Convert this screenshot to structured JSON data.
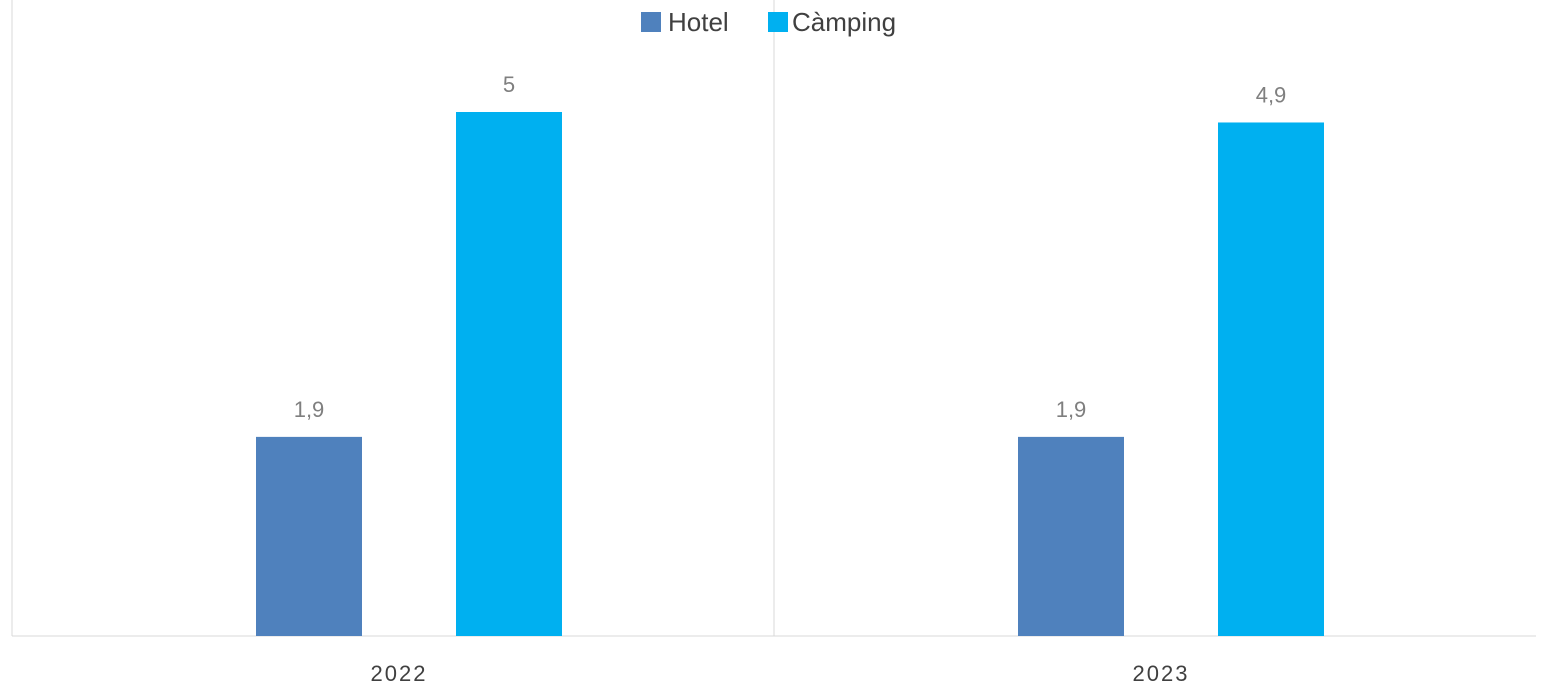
{
  "chart_data": {
    "type": "bar",
    "categories": [
      "2022",
      "2023"
    ],
    "series": [
      {
        "name": "Hotel",
        "color": "#4f81bd",
        "values": [
          1.9,
          1.9
        ],
        "labels": [
          "1,9",
          "1,9"
        ]
      },
      {
        "name": "Càmping",
        "color": "#00b0f0",
        "values": [
          5,
          4.9
        ],
        "labels": [
          "5",
          "4,9"
        ]
      }
    ],
    "title": "",
    "xlabel": "",
    "ylabel": "",
    "ylim": [
      0,
      5
    ],
    "grid": false,
    "legend": "top-center",
    "colors": {
      "axis": "#d9d9d9",
      "label_text": "#7f7f7f",
      "category_text": "#404040"
    }
  }
}
